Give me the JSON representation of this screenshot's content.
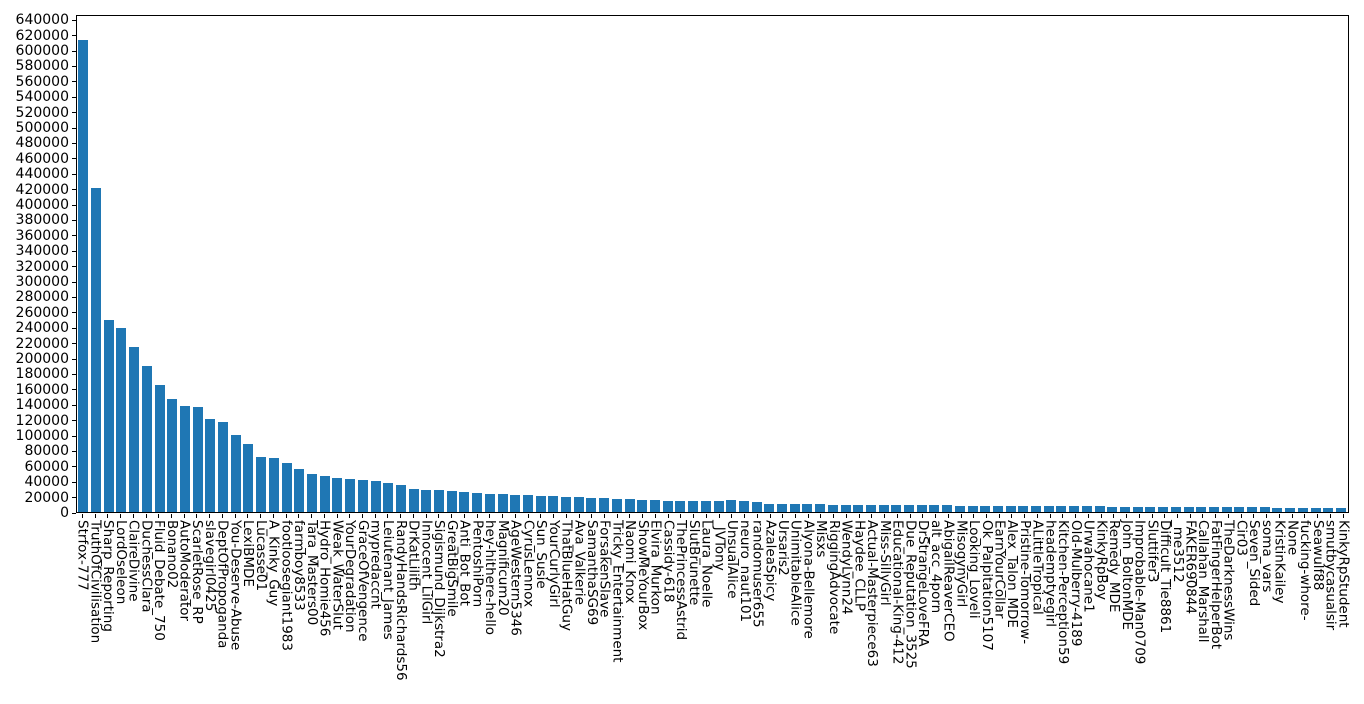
{
  "chart_data": {
    "type": "bar",
    "title": "",
    "xlabel": "",
    "ylabel": "",
    "legend": null,
    "grid": false,
    "bar_color": "#1f77b4",
    "spine_color": "#000000",
    "background_color": "#ffffff",
    "ylim": [
      0,
      646800
    ],
    "yticks": [
      0,
      20000,
      40000,
      60000,
      80000,
      100000,
      120000,
      140000,
      160000,
      180000,
      200000,
      220000,
      240000,
      260000,
      280000,
      300000,
      320000,
      340000,
      360000,
      380000,
      400000,
      420000,
      440000,
      460000,
      480000,
      500000,
      520000,
      540000,
      560000,
      580000,
      600000,
      620000,
      640000
    ],
    "categories": [
      "Strfox-777",
      "TruthOfCivilisation",
      "Sharp_Reporting",
      "LordOseleon",
      "ClaireDivine",
      "DuchessClara",
      "Fluid_Debate_750",
      "Bonano02",
      "AutoModerator",
      "ScarletRose_RP",
      "slavegirl0425",
      "DeptOfPropoganda",
      "You-Deserve-Abuse",
      "LexiBMDE",
      "Lucasse01",
      "A_Kinky_Guy",
      "footloosegiant1983",
      "farmboy8533",
      "Tara_Masters00",
      "Hydro_Homie456",
      "Weak_WaterSlut",
      "YourDegradation",
      "GraceOfVengence",
      "mypredaccnt",
      "Leiutenant_James",
      "RandyHandsRichards56",
      "DrKatLilith",
      "Innocent_LilGirl",
      "Sigismund_Dijkstra2",
      "GreatBigSmile",
      "Anti_Bot_Bot",
      "PentoshiPorn",
      "hey-hithere-hello",
      "Magnificum20",
      "AgeWestern5346",
      "CyrusLennox",
      "Sun_Susie",
      "YourCurlyGirl",
      "ThatBlueHatGuy",
      "Ava_Valkerie",
      "SamanthaSG69",
      "ForsakenSlave",
      "Tricky_Entertainment",
      "Naomi_Knox",
      "ShowMeYourBox",
      "Elvira_Murkon",
      "Cassidy-618",
      "ThePrincessAstrid",
      "SlutBrunette",
      "Laura_Noelle",
      "_JVTony",
      "UnsualAlice",
      "neuro_naut101",
      "randomuser655",
      "AzaleaSpicy",
      "Ursaris2",
      "UnimitableAlice",
      "Alyona-Bellemore",
      "Misxs",
      "RiggingAdvocate",
      "WendyLynn24",
      "Haydee_CLLP",
      "Actual-Masterpiece63",
      "Miss-SillyGirl",
      "Educational-King-412",
      "Due_Reputation_3525",
      "DrStrangeLoveFRA",
      "alt_acc_4porn",
      "AbigailReaverCEO",
      "MisogynyGirl",
      "Looking_Loveli",
      "Ok_Palpitation5107",
      "EarnYourCollar",
      "Alex_Talon_MDE",
      "Pristine-Tomorrow-",
      "ALittleTropical",
      "heademptyegirl",
      "Kitchen-Perception59",
      "Old-Mulberry-4189",
      "Urwahocane1",
      "KinkyRpBoy",
      "Remedy_MDE",
      "John_BoltonMDE",
      "Improbable-Man0709",
      "Sluttifer3",
      "Difficult_Tie8861",
      "_me3512",
      "FAKER690844",
      "Callahan_Marshall",
      "FatFingerHelperBot",
      "TheDarknessWins",
      "Cir03",
      "Seven_Sided",
      "soma_vars",
      "KristinKailey",
      "None",
      "fucking-whore-",
      "Seawulf88",
      "smutbycasualsir",
      "KinkyRpStudent"
    ],
    "values": [
      616000,
      423000,
      250000,
      240000,
      215000,
      191000,
      165000,
      148000,
      138500,
      137000,
      121000,
      118000,
      101000,
      89000,
      72000,
      70000,
      64500,
      55500,
      50000,
      47500,
      44000,
      43000,
      41500,
      40500,
      38000,
      35000,
      30000,
      29000,
      28500,
      27500,
      26000,
      25000,
      23500,
      23000,
      22500,
      22000,
      21500,
      21000,
      20000,
      19000,
      18500,
      18000,
      17000,
      16500,
      16000,
      15500,
      15000,
      14800,
      14500,
      14300,
      14000,
      15300,
      14800,
      13500,
      10400,
      10300,
      10200,
      10000,
      9900,
      9800,
      9600,
      9500,
      9400,
      9200,
      9100,
      9000,
      8800,
      8700,
      8600,
      8400,
      8300,
      8200,
      8000,
      7900,
      7800,
      7700,
      7600,
      7500,
      7400,
      7300,
      7200,
      7100,
      7000,
      6900,
      6800,
      6700,
      6600,
      6500,
      6400,
      6300,
      6200,
      6100,
      6000,
      5900,
      5800,
      5700,
      5600,
      5500,
      5400,
      5300
    ]
  }
}
